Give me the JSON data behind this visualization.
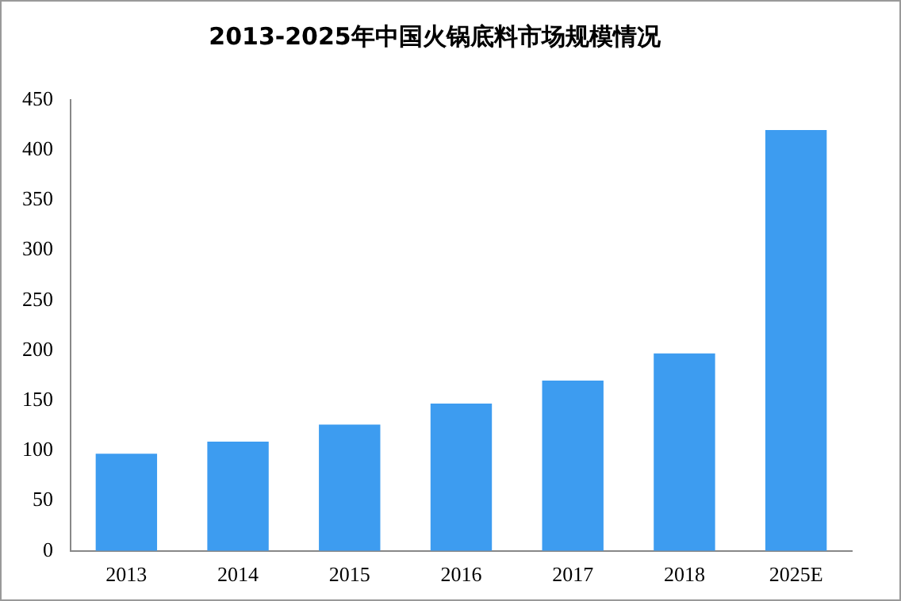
{
  "chart_data": {
    "type": "bar",
    "title": "2013-2025年中国火锅底料市场规模情况",
    "categories": [
      "2013",
      "2014",
      "2015",
      "2016",
      "2017",
      "2018",
      "2025E"
    ],
    "values": [
      97,
      109,
      126,
      147,
      170,
      197,
      420
    ],
    "color": "#3d9cf0",
    "ylim": [
      0,
      450
    ],
    "yticks": [
      0,
      50,
      100,
      150,
      200,
      250,
      300,
      350,
      400,
      450
    ],
    "grid": false
  }
}
